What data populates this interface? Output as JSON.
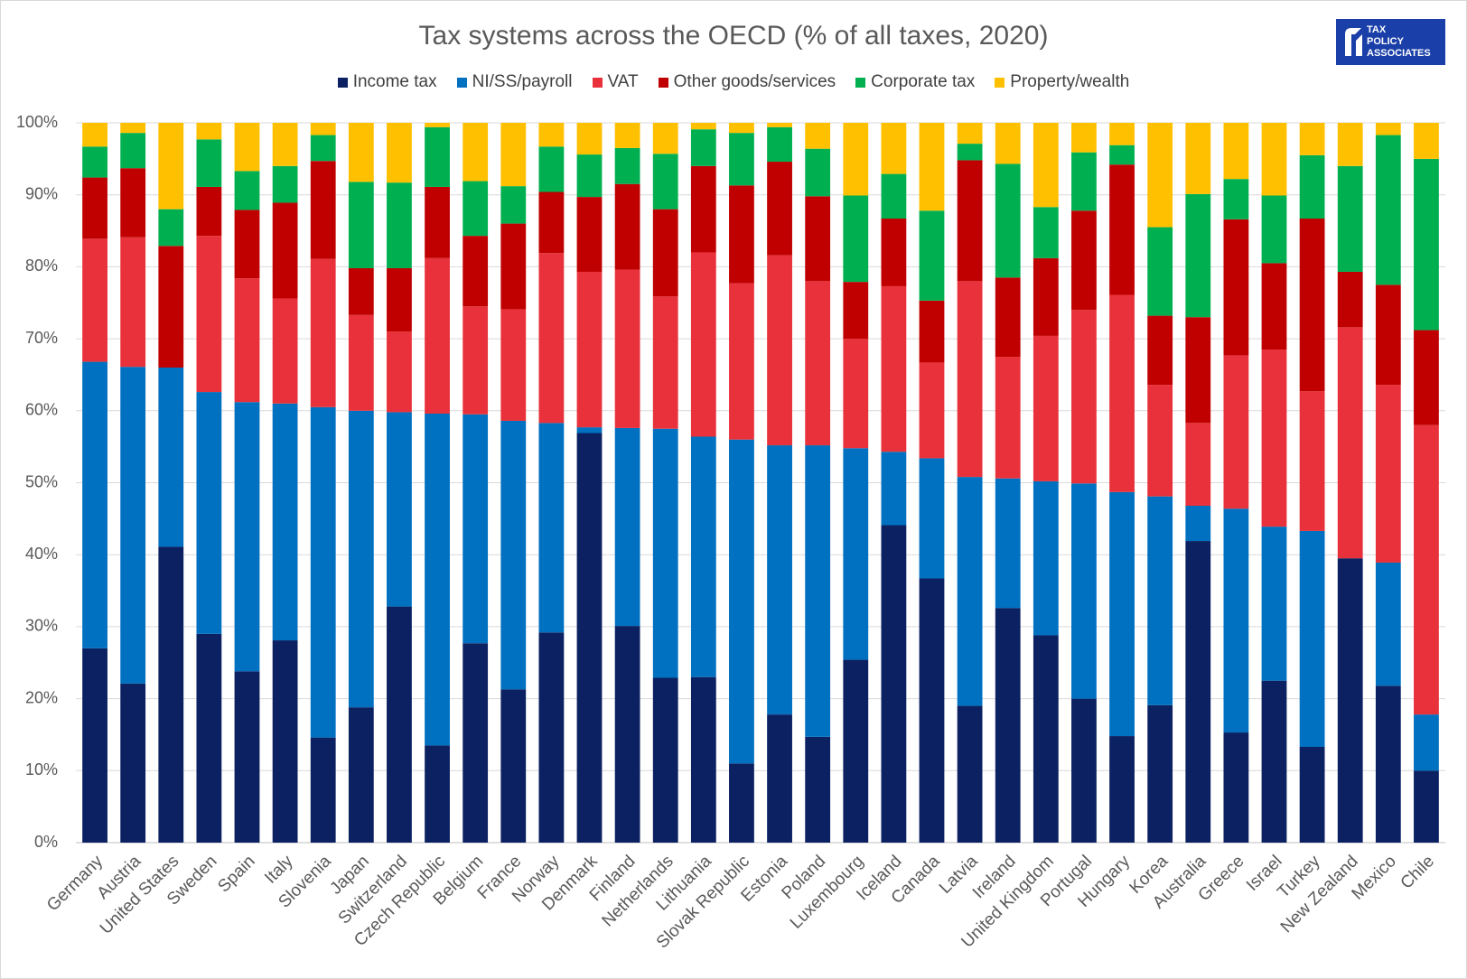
{
  "chart_data": {
    "type": "stacked_bar",
    "title": "Tax systems across the OECD (% of all taxes, 2020)",
    "logo": [
      "TAX",
      "POLICY",
      "ASSOCIATES"
    ],
    "categories": [
      "Germany",
      "Austria",
      "United States",
      "Sweden",
      "Spain",
      "Italy",
      "Slovenia",
      "Japan",
      "Switzerland",
      "Czech Republic",
      "Belgium",
      "France",
      "Norway",
      "Denmark",
      "Finland",
      "Netherlands",
      "Lithuania",
      "Slovak Republic",
      "Estonia",
      "Poland",
      "Luxembourg",
      "Iceland",
      "Canada",
      "Latvia",
      "Ireland",
      "United Kingdom",
      "Portugal",
      "Hungary",
      "Korea",
      "Australia",
      "Greece",
      "Israel",
      "Turkey",
      "New Zealand",
      "Mexico",
      "Chile"
    ],
    "series": [
      {
        "name": "Income tax",
        "color": "#0b2161",
        "values": [
          27,
          22.1,
          41.1,
          29,
          23.8,
          28.1,
          14.6,
          18.8,
          32.8,
          13.5,
          27.7,
          21.3,
          29.2,
          56.9,
          30.1,
          22.9,
          23,
          11,
          17.8,
          14.7,
          25.4,
          44.1,
          36.7,
          19,
          32.6,
          28.8,
          20,
          14.8,
          19.1,
          41.9,
          15.3,
          22.5,
          13.3,
          39.5,
          21.8,
          10
        ]
      },
      {
        "name": "NI/SS/payroll",
        "color": "#0070c0",
        "values": [
          39.8,
          44,
          24.9,
          33.6,
          37.4,
          32.9,
          45.9,
          41.2,
          27,
          46.1,
          31.8,
          37.3,
          29.1,
          0.8,
          27.5,
          34.6,
          33.4,
          45,
          37.4,
          40.5,
          29.4,
          10.2,
          16.7,
          31.8,
          18,
          21.4,
          29.9,
          33.9,
          29,
          4.9,
          31.1,
          21.4,
          30,
          0,
          17.1,
          7.8
        ]
      },
      {
        "name": "VAT",
        "color": "#e8313a",
        "values": [
          17.1,
          18,
          0,
          21.7,
          17.2,
          14.6,
          20.6,
          13.3,
          11.2,
          21.6,
          15,
          15.5,
          23.6,
          21.6,
          22,
          18.4,
          25.6,
          21.7,
          26.4,
          22.8,
          15.2,
          23,
          13.3,
          27.2,
          16.9,
          20.2,
          24.1,
          27.4,
          15.5,
          11.5,
          21.3,
          24.6,
          19.4,
          32.1,
          24.7,
          40.2
        ]
      },
      {
        "name": "Other goods/services",
        "color": "#c00000",
        "values": [
          8.5,
          9.6,
          16.9,
          6.8,
          9.5,
          13.3,
          13.6,
          6.5,
          8.8,
          9.9,
          9.8,
          11.9,
          8.5,
          10.4,
          11.9,
          12.1,
          12,
          13.6,
          13,
          11.8,
          7.9,
          9.4,
          8.6,
          16.8,
          11,
          10.8,
          13.8,
          18.1,
          9.6,
          14.7,
          18.9,
          12,
          24,
          7.7,
          13.9,
          13.2
        ]
      },
      {
        "name": "Corporate tax",
        "color": "#00b050",
        "values": [
          4.3,
          4.9,
          5.1,
          6.6,
          5.4,
          5.1,
          3.6,
          12,
          11.9,
          8.3,
          7.6,
          5.2,
          6.3,
          5.9,
          5,
          7.7,
          5.1,
          7.3,
          4.8,
          6.6,
          12,
          6.2,
          12.5,
          2.3,
          15.8,
          7.1,
          8.1,
          2.7,
          12.3,
          17.1,
          5.6,
          9.4,
          8.8,
          14.7,
          20.8,
          23.8
        ]
      },
      {
        "name": "Property/wealth",
        "color": "#ffc000",
        "values": [
          3.3,
          1.4,
          12,
          2.3,
          6.7,
          6,
          1.7,
          8.2,
          8.3,
          0.6,
          8.1,
          8.8,
          3.3,
          4.4,
          3.5,
          4.3,
          0.9,
          1.4,
          0.6,
          3.6,
          10.1,
          7.1,
          12.2,
          2.9,
          5.7,
          11.7,
          4.1,
          3.1,
          14.5,
          9.9,
          7.8,
          10.1,
          4.5,
          6,
          1.7,
          5
        ]
      }
    ],
    "ylim": [
      0,
      100
    ],
    "yticks": [
      {
        "value": 0,
        "label": "0%"
      },
      {
        "value": 10,
        "label": "10%"
      },
      {
        "value": 20,
        "label": "20%"
      },
      {
        "value": 30,
        "label": "30%"
      },
      {
        "value": 40,
        "label": "40%"
      },
      {
        "value": 50,
        "label": "50%"
      },
      {
        "value": 60,
        "label": "60%"
      },
      {
        "value": 70,
        "label": "70%"
      },
      {
        "value": 80,
        "label": "80%"
      },
      {
        "value": 90,
        "label": "90%"
      },
      {
        "value": 100,
        "label": "100%"
      }
    ],
    "grid": true
  }
}
